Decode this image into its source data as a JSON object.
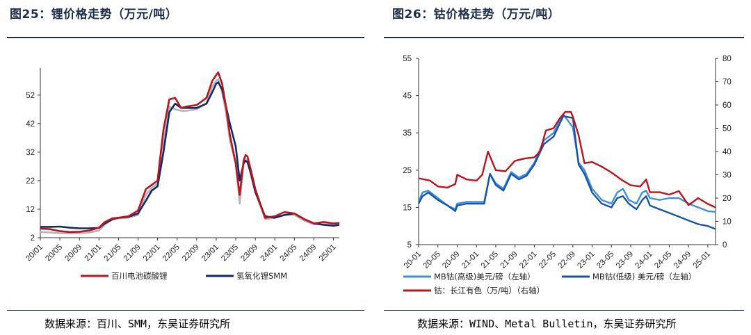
{
  "left": {
    "title": "图25：锂价格走势（万元/吨）",
    "source": "数据来源：百川、SMM，东吴证券研究所",
    "chart_data": {
      "type": "line",
      "y_ticks": [
        "2",
        "12",
        "22",
        "32",
        "42",
        "52"
      ],
      "ylim": [
        2,
        60
      ],
      "x_ticks": [
        "20/01",
        "20/05",
        "20/09",
        "21/01",
        "21/05",
        "21/09",
        "22/01",
        "22/05",
        "22/09",
        "23/01",
        "23/05",
        "23/09",
        "24/01",
        "24/05",
        "24/09",
        "25/01"
      ],
      "xlim": [
        0,
        15.3
      ],
      "legend_placement": "bottom",
      "series": [
        {
          "name": "百川电池碳酸锂",
          "color": "#c0121b",
          "x": [
            0,
            0.5,
            1,
            1.5,
            2,
            2.5,
            3,
            3.3,
            3.7,
            4,
            4.5,
            5,
            5.4,
            5.7,
            6,
            6.3,
            6.6,
            6.9,
            7.2,
            7.5,
            8,
            8.5,
            8.8,
            9,
            9.1,
            9.3,
            9.5,
            9.7,
            10,
            10.2,
            10.4,
            10.5,
            10.6,
            10.8,
            11,
            11.5,
            12,
            12.5,
            13,
            13.5,
            14,
            14.5,
            15,
            15.3
          ],
          "y": [
            5.2,
            5.0,
            4.3,
            4.0,
            4.1,
            4.5,
            5.5,
            7.5,
            8.8,
            9.0,
            9.5,
            11.5,
            19,
            20.5,
            22,
            40,
            50.5,
            51,
            47.5,
            48,
            48.5,
            51,
            57,
            59,
            60,
            56,
            48,
            38,
            28,
            17,
            29,
            31,
            30.5,
            25,
            19,
            9,
            9.5,
            11,
            10.5,
            8.5,
            7,
            7.5,
            7.0,
            7.2
          ]
        },
        {
          "name": "氢氧化锂SMM",
          "color": "#0d2a6b",
          "x": [
            0,
            0.5,
            1,
            1.5,
            2,
            2.5,
            3,
            3.3,
            3.7,
            4,
            4.5,
            5,
            5.4,
            5.7,
            6,
            6.3,
            6.6,
            6.9,
            7.2,
            7.5,
            8,
            8.5,
            8.8,
            9,
            9.1,
            9.3,
            9.5,
            9.7,
            10,
            10.2,
            10.4,
            10.5,
            10.6,
            10.8,
            11,
            11.5,
            12,
            12.5,
            13,
            13.5,
            14,
            14.5,
            15,
            15.3
          ],
          "y": [
            5.8,
            5.8,
            5.9,
            5.5,
            5.3,
            5.3,
            5.4,
            7.0,
            8.5,
            9.0,
            9.3,
            10.5,
            15,
            18.5,
            20,
            32,
            46,
            49,
            47.5,
            47.5,
            47.5,
            49,
            53,
            56,
            56.5,
            54,
            48,
            42,
            34,
            22,
            28,
            29,
            28.5,
            24,
            18,
            9.5,
            9,
            10,
            10.5,
            8.5,
            7,
            6.5,
            6.2,
            6.5
          ]
        },
        {
          "name": "",
          "color": "#b4b4b8",
          "x": [
            0,
            0.5,
            1,
            1.5,
            2,
            2.5,
            3,
            3.3,
            3.7,
            4,
            4.5,
            5,
            5.4,
            5.7,
            6,
            6.3,
            6.6,
            6.9,
            7.2,
            7.5,
            8,
            8.5,
            8.8,
            9,
            9.1,
            9.3,
            9.5,
            9.7,
            10,
            10.2,
            10.4,
            10.5,
            10.6,
            10.8,
            11,
            11.5,
            12,
            12.5,
            13,
            13.5,
            14,
            14.5,
            15,
            15.3
          ],
          "y": [
            4.0,
            3.8,
            3.6,
            3.5,
            3.6,
            3.8,
            4.5,
            6.5,
            8.5,
            8.8,
            9.0,
            10.0,
            17,
            19.5,
            21,
            36,
            48,
            47,
            46.5,
            46.5,
            47,
            49,
            55,
            57,
            57.5,
            53,
            46,
            36,
            28,
            14,
            28,
            29.5,
            29,
            23,
            18,
            8.5,
            9,
            10,
            10,
            8,
            6.7,
            7.0,
            6.8,
            6.8
          ]
        }
      ]
    }
  },
  "right": {
    "title": "图26：钴价格走势（万元/吨）",
    "source": "数据来源：WIND、Metal Bulletin，东吴证券研究所",
    "chart_data": {
      "type": "line",
      "y_left_ticks": [
        "5",
        "15",
        "25",
        "35",
        "45",
        "55"
      ],
      "ylim_left": [
        5,
        55
      ],
      "y_right_ticks": [
        "0",
        "10",
        "20",
        "30",
        "40",
        "50",
        "60",
        "70",
        "80"
      ],
      "ylim_right": [
        0,
        80
      ],
      "x_ticks": [
        "20-01",
        "20-05",
        "20-09",
        "21-01",
        "21-05",
        "21-09",
        "22-01",
        "22-05",
        "22-09",
        "23-01",
        "23-05",
        "23-09",
        "24-01",
        "24-05",
        "24-09",
        "25-01"
      ],
      "xlim": [
        0,
        15.4
      ],
      "legend_placement": "bottom",
      "series": [
        {
          "name": "MB钴(高级)美元/磅（左轴）",
          "color": "#3d8fe0",
          "axis": "left",
          "x": [
            0,
            0.2,
            0.5,
            1,
            1.5,
            1.9,
            2,
            2.5,
            3,
            3.4,
            3.7,
            4,
            4.4,
            4.8,
            5.2,
            5.6,
            6,
            6.5,
            7,
            7.5,
            8,
            8.3,
            8.6,
            9,
            9.5,
            10,
            10.3,
            10.6,
            10.9,
            11.3,
            11.6,
            11.8,
            12,
            12.5,
            13,
            13.5,
            14,
            14.5,
            15,
            15.4
          ],
          "y": [
            16.5,
            19,
            19.5,
            17.5,
            15.5,
            14.5,
            16,
            16.5,
            16.5,
            16.5,
            24,
            21.5,
            20,
            24.5,
            23,
            24,
            27,
            33,
            35,
            40,
            36.5,
            27,
            25,
            20,
            17,
            16,
            19,
            20,
            17,
            16,
            19,
            19.5,
            17.5,
            17,
            17.5,
            17.5,
            16,
            15,
            14,
            13.8
          ]
        },
        {
          "name": "MB钴(低级) 美元/磅（左轴）",
          "color": "#1655a8",
          "axis": "left",
          "x": [
            0,
            0.2,
            0.5,
            1,
            1.5,
            1.9,
            2,
            2.5,
            3,
            3.4,
            3.7,
            4,
            4.4,
            4.8,
            5.2,
            5.6,
            6,
            6.5,
            7,
            7.5,
            8,
            8.3,
            8.6,
            9,
            9.5,
            10,
            10.3,
            10.6,
            10.9,
            11.3,
            11.6,
            11.8,
            12,
            12.5,
            13,
            13.5,
            14,
            14.5,
            15,
            15.4
          ],
          "y": [
            16,
            18,
            19,
            17,
            15.5,
            14,
            15.5,
            16,
            16,
            16,
            24,
            21,
            19.5,
            24,
            22.5,
            23.5,
            26.5,
            32,
            34,
            39.5,
            39,
            26.5,
            24,
            19,
            16,
            15,
            17.5,
            18,
            16,
            14.5,
            17,
            18,
            15.5,
            14.5,
            13.5,
            12.5,
            11.5,
            10.5,
            10,
            9.2
          ]
        },
        {
          "name": "钴：长江有色（万/吨）（右轴）",
          "color": "#c0121b",
          "axis": "right",
          "x": [
            0,
            0.3,
            0.6,
            1,
            1.5,
            1.9,
            2,
            2.5,
            3,
            3.3,
            3.6,
            4,
            4.5,
            5,
            5.5,
            6,
            6.3,
            6.6,
            7,
            7.3,
            7.6,
            7.9,
            8,
            8.3,
            8.6,
            9,
            9.5,
            10,
            10.5,
            11,
            11.5,
            11.8,
            12,
            12.5,
            13,
            13.5,
            14,
            14.5,
            15,
            15.4
          ],
          "y": [
            28.5,
            28,
            27.5,
            25,
            24.5,
            26,
            30,
            28,
            27.5,
            30,
            40,
            32,
            31.5,
            36,
            37,
            37.5,
            40,
            49,
            50,
            54,
            57,
            57,
            55,
            47,
            35,
            35.5,
            33.5,
            31,
            28,
            25.5,
            25,
            28,
            22.5,
            22.5,
            21.5,
            23,
            17,
            20,
            17.5,
            16
          ]
        }
      ]
    }
  }
}
